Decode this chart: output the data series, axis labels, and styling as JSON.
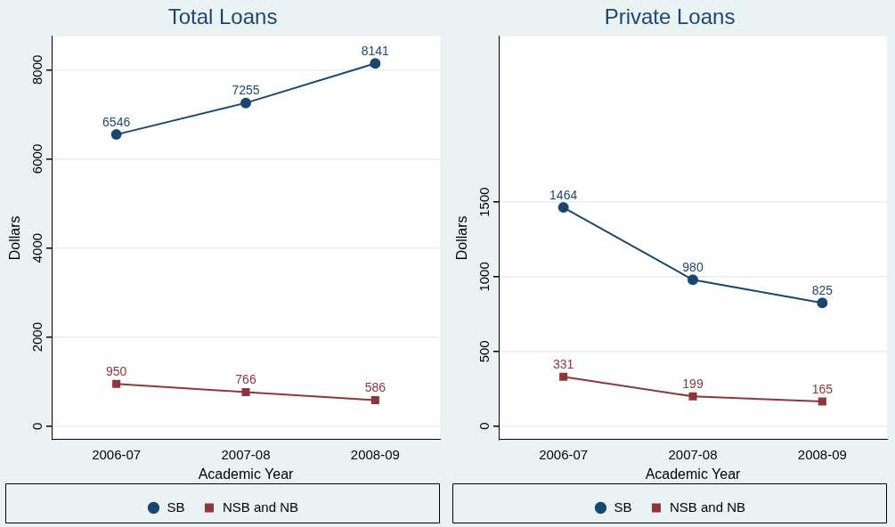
{
  "chart_data": [
    {
      "type": "line",
      "title": "Total Loans",
      "xlabel": "Academic Year",
      "ylabel": "Dollars",
      "categories": [
        "2006-07",
        "2007-08",
        "2008-09"
      ],
      "series": [
        {
          "name": "SB",
          "color": "#1a476f",
          "values": [
            6546,
            7255,
            8141
          ],
          "marker": "circle"
        },
        {
          "name": "NSB and NB",
          "color": "#90353b",
          "values": [
            950,
            766,
            586
          ],
          "marker": "square"
        }
      ],
      "ylim": [
        -300,
        8750
      ],
      "yticks": [
        0,
        2000,
        4000,
        6000,
        8000
      ],
      "grid": "y",
      "legend": "bottom",
      "data_labels": true
    },
    {
      "type": "line",
      "title": "Private Loans",
      "xlabel": "Academic Year",
      "ylabel": "Dollars",
      "categories": [
        "2006-07",
        "2007-08",
        "2008-09"
      ],
      "series": [
        {
          "name": "SB",
          "color": "#1a476f",
          "values": [
            1464,
            980,
            825
          ],
          "marker": "circle"
        },
        {
          "name": "NSB and NB",
          "color": "#90353b",
          "values": [
            331,
            199,
            165
          ],
          "marker": "square"
        }
      ],
      "ylim": [
        -90,
        2610
      ],
      "yticks": [
        0,
        500,
        1000,
        1500
      ],
      "grid": "y",
      "legend": "bottom",
      "data_labels": true
    }
  ]
}
